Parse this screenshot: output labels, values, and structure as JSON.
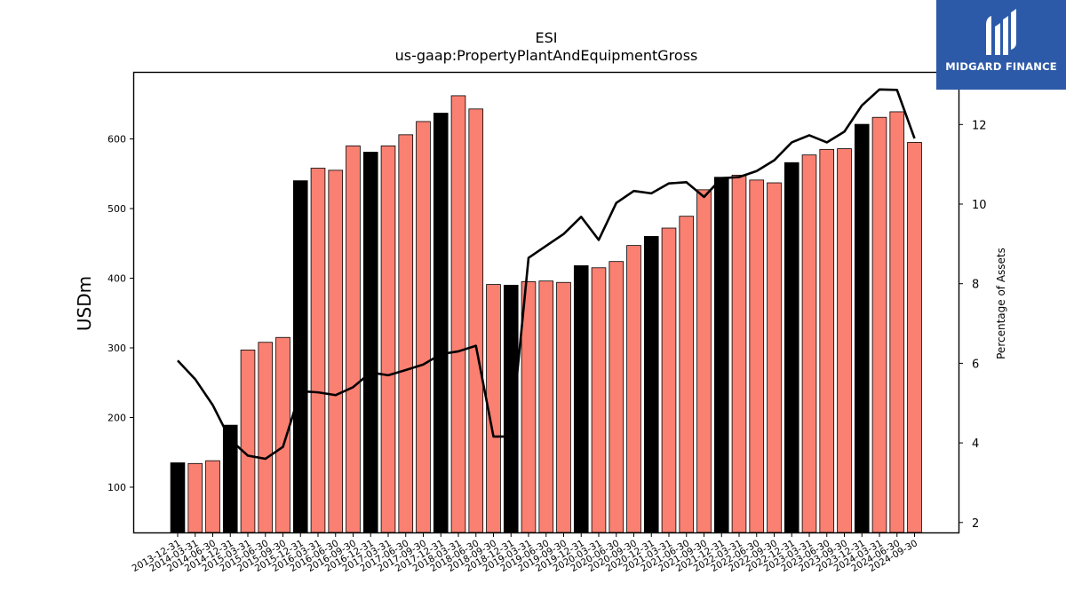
{
  "logo": {
    "text": "MIDGARD FINANCE",
    "color": "#2d5aa8"
  },
  "chart_data": {
    "type": "bar",
    "title": "ESI",
    "subtitle": "us-gaap:PropertyPlantAndEquipmentGross",
    "ylabel": "USDm",
    "y2label": "Percentage of Assets",
    "ylim": [
      35,
      695
    ],
    "y2lim": [
      1.75,
      13.3
    ],
    "yticks": [
      100,
      200,
      300,
      400,
      500,
      600
    ],
    "y2ticks": [
      2,
      4,
      6,
      8,
      10,
      12
    ],
    "grid": false,
    "colors": {
      "bar": "#fa8072",
      "highlight_bar": "#000000",
      "line": "#000000"
    },
    "categories": [
      "2013-12-31",
      "2014-03-31",
      "2014-06-30",
      "2014-12-31",
      "2015-03-31",
      "2015-06-30",
      "2015-09-30",
      "2015-12-31",
      "2016-03-31",
      "2016-06-30",
      "2016-09-30",
      "2016-12-31",
      "2017-03-31",
      "2017-06-30",
      "2017-09-30",
      "2017-12-31",
      "2018-03-31",
      "2018-06-30",
      "2018-09-30",
      "2018-12-31",
      "2019-03-31",
      "2019-06-30",
      "2019-09-30",
      "2019-12-31",
      "2020-03-31",
      "2020-06-30",
      "2020-09-30",
      "2020-12-31",
      "2021-03-31",
      "2021-06-30",
      "2021-09-30",
      "2021-12-31",
      "2022-03-31",
      "2022-06-30",
      "2022-09-30",
      "2022-12-31",
      "2023-03-31",
      "2023-06-30",
      "2023-09-30",
      "2023-12-31",
      "2024-03-31",
      "2024-06-30",
      "2024-09-30"
    ],
    "series": [
      {
        "values": [
          135,
          134,
          138,
          189,
          297,
          308,
          315,
          540,
          558,
          555,
          590,
          581,
          590,
          606,
          625,
          637,
          662,
          643,
          391,
          390,
          395,
          396,
          394,
          418,
          415,
          424,
          447,
          460,
          472,
          489,
          527,
          545,
          548,
          541,
          537,
          566,
          577,
          585,
          586,
          621,
          631,
          639,
          595
        ]
      },
      {
        "axis": "right",
        "type": "line",
        "values": [
          6.07,
          5.6,
          4.95,
          4.08,
          3.68,
          3.6,
          3.9,
          5.3,
          5.27,
          5.2,
          5.4,
          5.77,
          5.7,
          5.83,
          5.97,
          6.23,
          6.3,
          6.44,
          4.16,
          4.16,
          8.65,
          8.95,
          9.25,
          9.68,
          9.1,
          10.03,
          10.33,
          10.27,
          10.52,
          10.55,
          10.18,
          10.65,
          10.68,
          10.83,
          11.1,
          11.55,
          11.73,
          11.55,
          11.82,
          12.48,
          12.88,
          12.87,
          11.65
        ]
      }
    ],
    "highlight_categories": [
      "2013-12-31",
      "2014-12-31",
      "2015-12-31",
      "2016-12-31",
      "2017-12-31",
      "2018-12-31",
      "2019-12-31",
      "2020-12-31",
      "2021-12-31",
      "2022-12-31",
      "2023-12-31"
    ]
  }
}
